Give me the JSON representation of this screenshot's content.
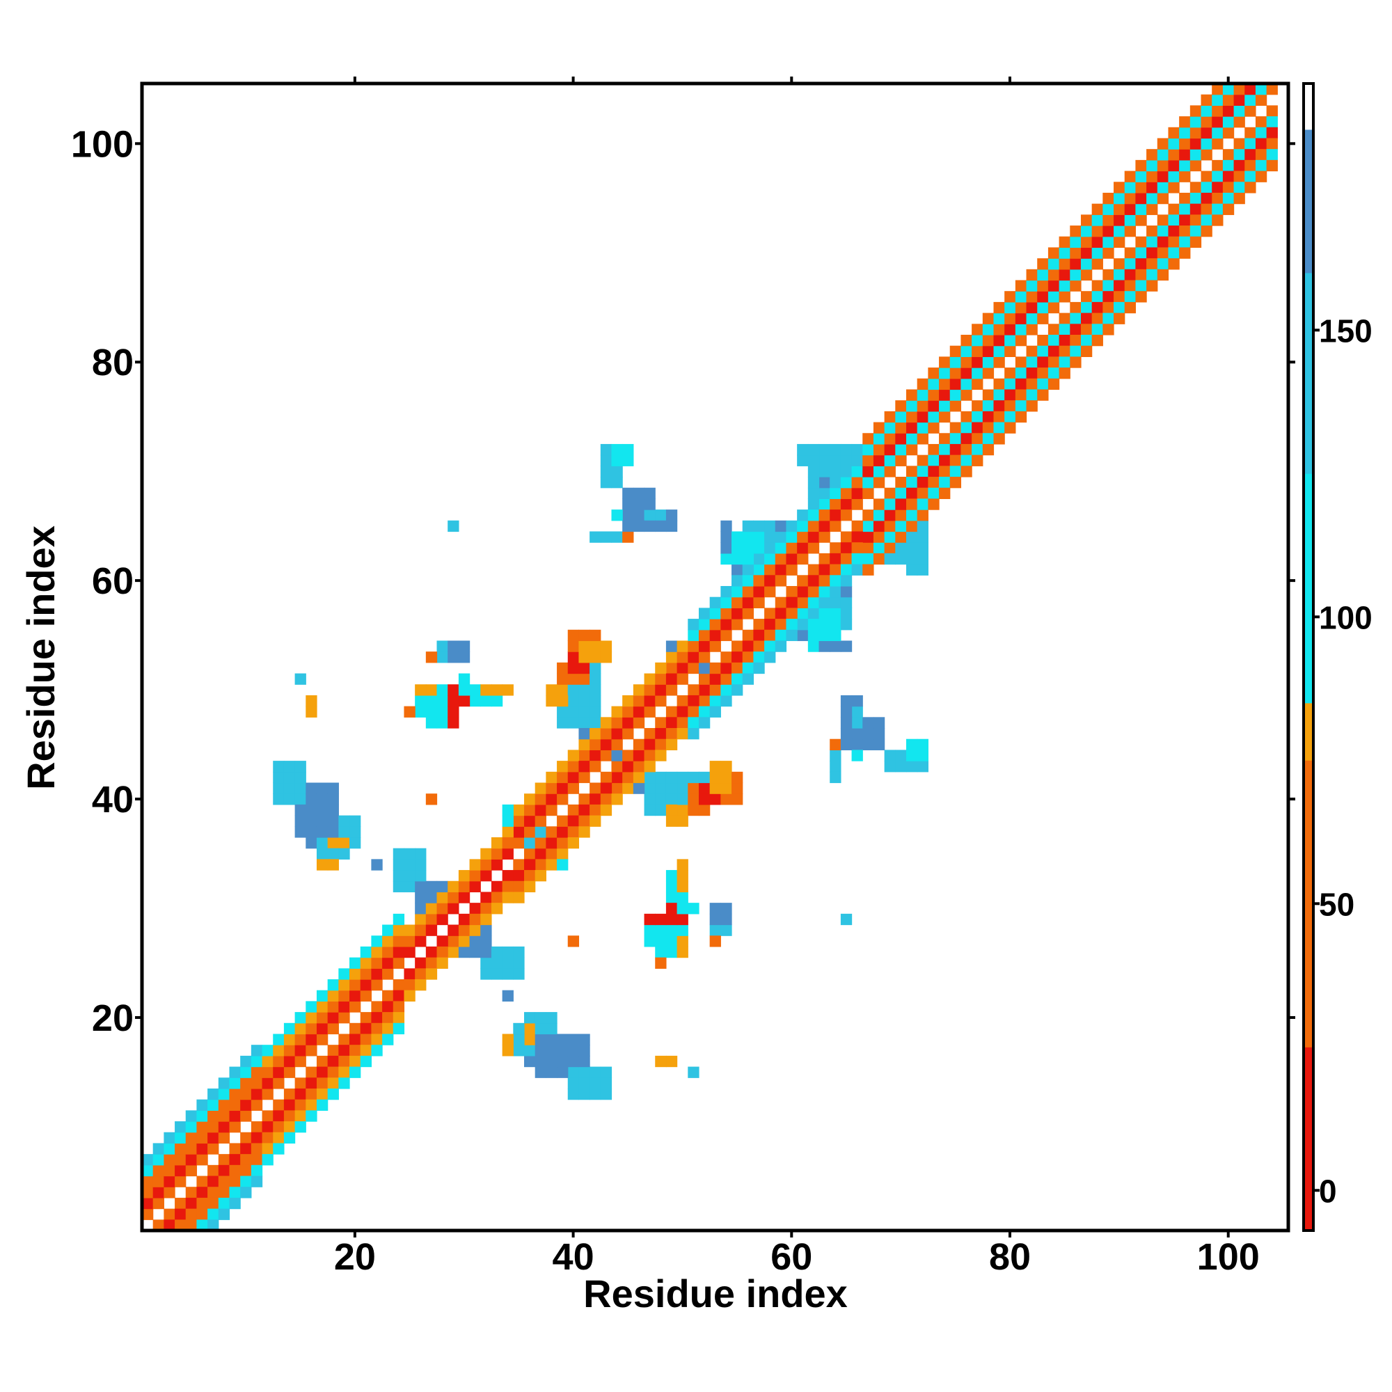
{
  "chart_data": {
    "type": "heatmap",
    "xlabel": "Residue index",
    "ylabel": "Residue index",
    "xlim": [
      1,
      105
    ],
    "ylim": [
      1,
      105
    ],
    "xticks": [
      "20",
      "40",
      "60",
      "80",
      "100"
    ],
    "yticks": [
      "20",
      "40",
      "60",
      "80",
      "100"
    ],
    "colorbar": {
      "ticks": [
        "0",
        "50",
        "100",
        "150"
      ],
      "range": [
        -7,
        193
      ],
      "bands": [
        {
          "from": -7,
          "to": 25,
          "color": "#e8180d"
        },
        {
          "from": 25,
          "to": 75,
          "color": "#f26b0a"
        },
        {
          "from": 75,
          "to": 85,
          "color": "#f5a10c"
        },
        {
          "from": 85,
          "to": 125,
          "color": "#12e6ef"
        },
        {
          "from": 125,
          "to": 160,
          "color": "#2fc3e2"
        },
        {
          "from": 160,
          "to": 185,
          "color": "#4a8cc8"
        },
        {
          "from": 185,
          "to": 193,
          "color": "#ffffff"
        }
      ]
    },
    "category_colors": {
      "r": "#e8180d",
      "o": "#f26b0a",
      "y": "#f5a10c",
      "c": "#12e6ef",
      "b": "#2fc3e2",
      "d": "#4a8cc8"
    },
    "diagonal_band": {
      "pattern_offsets": [
        -6,
        -5,
        -4,
        -3,
        -2,
        -1,
        1,
        2,
        3,
        4,
        5,
        6
      ],
      "segments": [
        {
          "from": 1,
          "to": 11,
          "offsets": {
            "1": "o",
            "2": "r",
            "3": "o",
            "4": "o",
            "5": "c",
            "6": "b",
            "-1": "o",
            "-2": "r",
            "-3": "o",
            "-4": "o",
            "-5": "c",
            "-6": "b"
          }
        },
        {
          "from": 12,
          "to": 24,
          "offsets": {
            "1": "o",
            "2": "r",
            "3": "o",
            "4": "y",
            "5": "c",
            "-1": "o",
            "-2": "r",
            "-3": "o",
            "-4": "y",
            "-5": "c"
          }
        },
        {
          "from": 25,
          "to": 34,
          "offsets": {
            "1": "r",
            "2": "o",
            "3": "y",
            "-1": "r",
            "-2": "o",
            "-3": "y"
          }
        },
        {
          "from": 35,
          "to": 50,
          "offsets": {
            "1": "o",
            "2": "r",
            "3": "o",
            "4": "y",
            "-1": "o",
            "-2": "r",
            "-3": "o",
            "-4": "y"
          }
        },
        {
          "from": 51,
          "to": 66,
          "offsets": {
            "1": "o",
            "2": "r",
            "3": "o",
            "4": "c",
            "5": "b",
            "-1": "o",
            "-2": "r",
            "-3": "o",
            "-4": "c",
            "-5": "b"
          }
        },
        {
          "from": 67,
          "to": 104,
          "offsets": {
            "1": "o",
            "2": "c",
            "3": "r",
            "4": "o",
            "5": "c",
            "6": "o",
            "-1": "o",
            "-2": "c",
            "-3": "r",
            "-4": "o",
            "-5": "c",
            "-6": "o"
          }
        }
      ]
    },
    "contact_rectangles": [
      {
        "x": [
          13,
          15
        ],
        "y": [
          40,
          42
        ],
        "c": "b"
      },
      {
        "x": [
          15,
          17
        ],
        "y": [
          38,
          41
        ],
        "c": "d"
      },
      {
        "x": [
          16,
          19
        ],
        "y": [
          36,
          38
        ],
        "c": "d"
      },
      {
        "x": [
          17,
          19
        ],
        "y": [
          35,
          36
        ],
        "c": "b"
      },
      {
        "x": [
          17,
          18
        ],
        "y": [
          34,
          34
        ],
        "c": "y"
      },
      {
        "x": [
          15,
          15
        ],
        "y": [
          51,
          51
        ],
        "c": "b"
      },
      {
        "x": [
          16,
          16
        ],
        "y": [
          49,
          49
        ],
        "c": "y"
      },
      {
        "x": [
          22,
          22
        ],
        "y": [
          34,
          34
        ],
        "c": "d"
      },
      {
        "x": [
          24,
          26
        ],
        "y": [
          32,
          34
        ],
        "c": "b"
      },
      {
        "x": [
          26,
          28
        ],
        "y": [
          29,
          31
        ],
        "c": "d"
      },
      {
        "x": [
          30,
          32
        ],
        "y": [
          26,
          28
        ],
        "c": "d"
      },
      {
        "x": [
          33,
          35
        ],
        "y": [
          24,
          26
        ],
        "c": "b"
      },
      {
        "x": [
          34,
          34
        ],
        "y": [
          22,
          22
        ],
        "c": "d"
      },
      {
        "x": [
          35,
          37
        ],
        "y": [
          36,
          39
        ],
        "c": "b"
      },
      {
        "x": [
          37,
          39
        ],
        "y": [
          34,
          36
        ],
        "c": "c"
      },
      {
        "x": [
          36,
          38
        ],
        "y": [
          18,
          20
        ],
        "c": "b"
      },
      {
        "x": [
          37,
          41
        ],
        "y": [
          15,
          18
        ],
        "c": "d"
      },
      {
        "x": [
          40,
          43
        ],
        "y": [
          13,
          15
        ],
        "c": "b"
      },
      {
        "x": [
          36,
          36
        ],
        "y": [
          18,
          19
        ],
        "c": "y"
      },
      {
        "x": [
          27,
          29
        ],
        "y": [
          47,
          50
        ],
        "c": "c"
      },
      {
        "x": [
          26,
          27
        ],
        "y": [
          49,
          50
        ],
        "c": "y"
      },
      {
        "x": [
          29,
          29
        ],
        "y": [
          47,
          50
        ],
        "c": "r"
      },
      {
        "x": [
          28,
          30
        ],
        "y": [
          53,
          54
        ],
        "c": "b"
      },
      {
        "x": [
          27,
          27
        ],
        "y": [
          53,
          53
        ],
        "c": "o"
      },
      {
        "x": [
          31,
          33
        ],
        "y": [
          49,
          50
        ],
        "c": "c"
      },
      {
        "x": [
          32,
          33
        ],
        "y": [
          50,
          50
        ],
        "c": "y"
      },
      {
        "x": [
          30,
          30
        ],
        "y": [
          49,
          50
        ],
        "c": "r"
      },
      {
        "x": [
          29,
          29
        ],
        "y": [
          65,
          65
        ],
        "c": "b"
      },
      {
        "x": [
          27,
          27
        ],
        "y": [
          40,
          40
        ],
        "c": "o"
      },
      {
        "x": [
          39,
          42
        ],
        "y": [
          50,
          52
        ],
        "c": "b"
      },
      {
        "x": [
          40,
          42
        ],
        "y": [
          47,
          49
        ],
        "c": "d"
      },
      {
        "x": [
          40,
          42
        ],
        "y": [
          53,
          55
        ],
        "c": "o"
      },
      {
        "x": [
          41,
          42
        ],
        "y": [
          53,
          53
        ],
        "c": "r"
      },
      {
        "x": [
          43,
          43
        ],
        "y": [
          54,
          54
        ],
        "c": "o"
      },
      {
        "x": [
          44,
          46
        ],
        "y": [
          41,
          44
        ],
        "c": "d"
      },
      {
        "x": [
          47,
          49
        ],
        "y": [
          39,
          42
        ],
        "c": "b"
      },
      {
        "x": [
          49,
          50
        ],
        "y": [
          38,
          39
        ],
        "c": "y"
      },
      {
        "x": [
          51,
          52
        ],
        "y": [
          39,
          41
        ],
        "c": "o"
      },
      {
        "x": [
          52,
          53
        ],
        "y": [
          40,
          41
        ],
        "c": "r"
      },
      {
        "x": [
          53,
          54
        ],
        "y": [
          41,
          43
        ],
        "c": "y"
      },
      {
        "x": [
          48,
          50
        ],
        "y": [
          26,
          29
        ],
        "c": "c"
      },
      {
        "x": [
          48,
          50
        ],
        "y": [
          29,
          29
        ],
        "c": "r"
      },
      {
        "x": [
          48,
          48
        ],
        "y": [
          25,
          25
        ],
        "c": "o"
      },
      {
        "x": [
          50,
          50
        ],
        "y": [
          26,
          27
        ],
        "c": "y"
      },
      {
        "x": [
          50,
          51
        ],
        "y": [
          30,
          30
        ],
        "c": "c"
      },
      {
        "x": [
          50,
          50
        ],
        "y": [
          32,
          34
        ],
        "c": "y"
      },
      {
        "x": [
          53,
          54
        ],
        "y": [
          29,
          30
        ],
        "c": "d"
      },
      {
        "x": [
          53,
          53
        ],
        "y": [
          27,
          27
        ],
        "c": "o"
      },
      {
        "x": [
          48,
          48
        ],
        "y": [
          16,
          16
        ],
        "c": "y"
      },
      {
        "x": [
          51,
          51
        ],
        "y": [
          15,
          15
        ],
        "c": "b"
      },
      {
        "x": [
          40,
          40
        ],
        "y": [
          27,
          27
        ],
        "c": "o"
      },
      {
        "x": [
          49,
          52
        ],
        "y": [
          52,
          54
        ],
        "c": "b"
      },
      {
        "x": [
          52,
          54
        ],
        "y": [
          49,
          52
        ],
        "c": "d"
      },
      {
        "x": [
          54,
          54
        ],
        "y": [
          62,
          65
        ],
        "c": "d"
      },
      {
        "x": [
          57,
          59
        ],
        "y": [
          61,
          65
        ],
        "c": "d"
      },
      {
        "x": [
          56,
          58
        ],
        "y": [
          63,
          65
        ],
        "c": "b"
      },
      {
        "x": [
          61,
          63
        ],
        "y": [
          55,
          58
        ],
        "c": "d"
      },
      {
        "x": [
          62,
          64
        ],
        "y": [
          54,
          57
        ],
        "c": "c"
      },
      {
        "x": [
          63,
          65
        ],
        "y": [
          54,
          54
        ],
        "c": "d"
      },
      {
        "x": [
          63,
          66
        ],
        "y": [
          67,
          72
        ],
        "c": "b"
      },
      {
        "x": [
          64,
          66
        ],
        "y": [
          67,
          69
        ],
        "c": "d"
      },
      {
        "x": [
          67,
          70
        ],
        "y": [
          62,
          65
        ],
        "c": "b"
      },
      {
        "x": [
          68,
          69
        ],
        "y": [
          63,
          64
        ],
        "c": "d"
      },
      {
        "x": [
          71,
          72
        ],
        "y": [
          61,
          63
        ],
        "c": "b"
      },
      {
        "x": [
          43,
          44
        ],
        "y": [
          70,
          72
        ],
        "c": "b"
      },
      {
        "x": [
          45,
          47
        ],
        "y": [
          66,
          68
        ],
        "c": "d"
      },
      {
        "x": [
          44,
          48
        ],
        "y": [
          66,
          66
        ],
        "c": "c"
      },
      {
        "x": [
          48,
          49
        ],
        "y": [
          66,
          66
        ],
        "c": "d"
      },
      {
        "x": [
          43,
          44
        ],
        "y": [
          64,
          64
        ],
        "c": "b"
      },
      {
        "x": [
          45,
          45
        ],
        "y": [
          64,
          64
        ],
        "c": "o"
      },
      {
        "x": [
          46,
          46
        ],
        "y": [
          65,
          65
        ],
        "c": "b"
      },
      {
        "x": [
          65,
          66
        ],
        "y": [
          45,
          49
        ],
        "c": "d"
      },
      {
        "x": [
          66,
          66
        ],
        "y": [
          47,
          48
        ],
        "c": "b"
      },
      {
        "x": [
          64,
          64
        ],
        "y": [
          42,
          45
        ],
        "c": "b"
      },
      {
        "x": [
          64,
          64
        ],
        "y": [
          45,
          45
        ],
        "c": "o"
      },
      {
        "x": [
          69,
          71
        ],
        "y": [
          43,
          44
        ],
        "c": "b"
      },
      {
        "x": [
          71,
          72
        ],
        "y": [
          44,
          45
        ],
        "c": "c"
      },
      {
        "x": [
          65,
          65
        ],
        "y": [
          29,
          29
        ],
        "c": "b"
      }
    ]
  }
}
